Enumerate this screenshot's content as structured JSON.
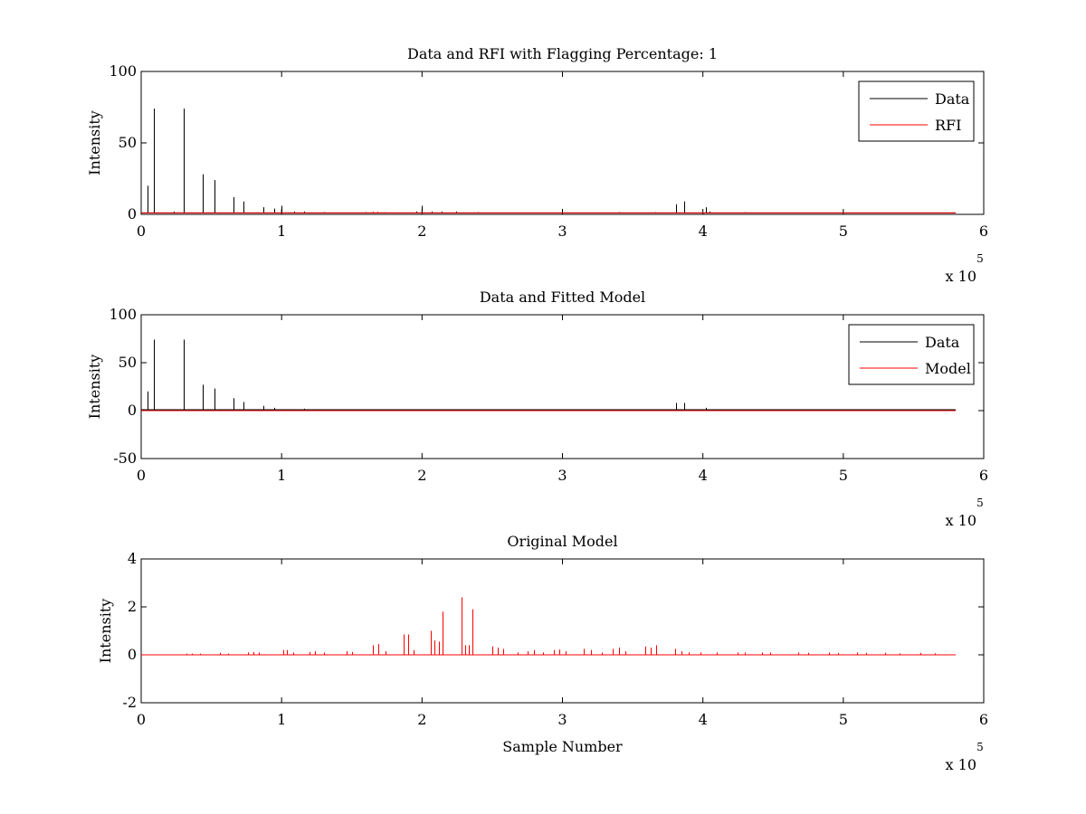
{
  "figure": {
    "background": "#ffffff",
    "colors": {
      "data": "#000000",
      "rfi": "#ff0000",
      "model": "#ff0000"
    }
  },
  "chart_data": [
    {
      "type": "line",
      "title": "Data and RFI with Flagging Percentage: 1",
      "xlabel": "",
      "ylabel": "Intensity",
      "xlim": [
        0,
        600000
      ],
      "ylim": [
        0,
        100
      ],
      "xticks": [
        "0",
        "1",
        "2",
        "3",
        "4",
        "5",
        "6"
      ],
      "yticks": [
        "0",
        "50",
        "100"
      ],
      "x_exponent": {
        "base": "x 10",
        "power": "5"
      },
      "legend": {
        "placement": "top-right",
        "entries": [
          "Data",
          "RFI"
        ]
      },
      "series": [
        {
          "name": "Data",
          "color": "#000000",
          "baseline": 1,
          "x_end": 580000,
          "spikes": [
            {
              "x": 4500,
              "y": 20
            },
            {
              "x": 9000,
              "y": 74
            },
            {
              "x": 23000,
              "y": 2
            },
            {
              "x": 30000,
              "y": 74
            },
            {
              "x": 44000,
              "y": 28
            },
            {
              "x": 52000,
              "y": 24
            },
            {
              "x": 66000,
              "y": 12
            },
            {
              "x": 73000,
              "y": 9
            },
            {
              "x": 87000,
              "y": 5
            },
            {
              "x": 95000,
              "y": 4
            },
            {
              "x": 100000,
              "y": 6
            },
            {
              "x": 109000,
              "y": 2
            },
            {
              "x": 116000,
              "y": 2
            },
            {
              "x": 130000,
              "y": 1.5
            },
            {
              "x": 160000,
              "y": 1.5
            },
            {
              "x": 196000,
              "y": 2
            },
            {
              "x": 200000,
              "y": 6
            },
            {
              "x": 207000,
              "y": 2
            },
            {
              "x": 214000,
              "y": 2
            },
            {
              "x": 224000,
              "y": 2
            },
            {
              "x": 240000,
              "y": 1.5
            },
            {
              "x": 340000,
              "y": 1.5
            },
            {
              "x": 366000,
              "y": 1.5
            },
            {
              "x": 381000,
              "y": 7
            },
            {
              "x": 387000,
              "y": 9
            },
            {
              "x": 402000,
              "y": 5
            },
            {
              "x": 405000,
              "y": 2
            },
            {
              "x": 430000,
              "y": 1.5
            }
          ]
        },
        {
          "name": "RFI",
          "color": "#ff0000",
          "baseline": 1,
          "x_end": 580000,
          "spikes": [
            {
              "x": 165000,
              "y": 1.8
            },
            {
              "x": 168000,
              "y": 1.8
            },
            {
              "x": 173000,
              "y": 1.5
            }
          ]
        }
      ]
    },
    {
      "type": "line",
      "title": "Data and Fitted Model",
      "xlabel": "",
      "ylabel": "Intensity",
      "xlim": [
        0,
        600000
      ],
      "ylim": [
        -50,
        100
      ],
      "xticks": [
        "0",
        "1",
        "2",
        "3",
        "4",
        "5",
        "6"
      ],
      "yticks": [
        "-50",
        "0",
        "50",
        "100"
      ],
      "x_exponent": {
        "base": "x 10",
        "power": "5"
      },
      "legend": {
        "placement": "top-right",
        "entries": [
          "Data",
          "Model"
        ]
      },
      "series": [
        {
          "name": "Data",
          "color": "#000000",
          "baseline": 1,
          "x_end": 580000,
          "spikes": [
            {
              "x": 4500,
              "y": 20
            },
            {
              "x": 9000,
              "y": 74
            },
            {
              "x": 30000,
              "y": 74
            },
            {
              "x": 44000,
              "y": 27
            },
            {
              "x": 52000,
              "y": 23
            },
            {
              "x": 66000,
              "y": 13
            },
            {
              "x": 73000,
              "y": 9
            },
            {
              "x": 87000,
              "y": 5
            },
            {
              "x": 95000,
              "y": 3
            },
            {
              "x": 116000,
              "y": 2
            },
            {
              "x": 381000,
              "y": 8
            },
            {
              "x": 387000,
              "y": 8
            },
            {
              "x": 402000,
              "y": 3
            }
          ]
        },
        {
          "name": "Model",
          "color": "#ff0000",
          "baseline": 0,
          "x_end": 580000,
          "spikes": []
        }
      ]
    },
    {
      "type": "line",
      "title": "Original Model",
      "xlabel": "Sample Number",
      "ylabel": "Intensity",
      "xlim": [
        0,
        600000
      ],
      "ylim": [
        -2,
        4
      ],
      "xticks": [
        "0",
        "1",
        "2",
        "3",
        "4",
        "5",
        "6"
      ],
      "yticks": [
        "-2",
        "0",
        "2",
        "4"
      ],
      "x_exponent": {
        "base": "x 10",
        "power": "5"
      },
      "series": [
        {
          "name": "",
          "color": "#ff0000",
          "baseline": 0,
          "x_end": 580000,
          "spikes": [
            {
              "x": 32000,
              "y": 0.05
            },
            {
              "x": 36000,
              "y": 0.05
            },
            {
              "x": 42000,
              "y": 0.05
            },
            {
              "x": 56000,
              "y": 0.08
            },
            {
              "x": 62000,
              "y": 0.05
            },
            {
              "x": 76000,
              "y": 0.1
            },
            {
              "x": 80000,
              "y": 0.12
            },
            {
              "x": 84000,
              "y": 0.1
            },
            {
              "x": 101000,
              "y": 0.2
            },
            {
              "x": 104000,
              "y": 0.2
            },
            {
              "x": 108000,
              "y": 0.1
            },
            {
              "x": 120000,
              "y": 0.12
            },
            {
              "x": 124000,
              "y": 0.15
            },
            {
              "x": 130000,
              "y": 0.1
            },
            {
              "x": 146000,
              "y": 0.15
            },
            {
              "x": 150000,
              "y": 0.12
            },
            {
              "x": 165000,
              "y": 0.4
            },
            {
              "x": 169000,
              "y": 0.45
            },
            {
              "x": 174000,
              "y": 0.15
            },
            {
              "x": 187000,
              "y": 0.85
            },
            {
              "x": 190000,
              "y": 0.85
            },
            {
              "x": 194000,
              "y": 0.2
            },
            {
              "x": 206000,
              "y": 1.0
            },
            {
              "x": 209000,
              "y": 0.6
            },
            {
              "x": 212000,
              "y": 0.55
            },
            {
              "x": 214500,
              "y": 1.8
            },
            {
              "x": 228000,
              "y": 2.4
            },
            {
              "x": 231000,
              "y": 0.4
            },
            {
              "x": 233000,
              "y": 0.4
            },
            {
              "x": 236000,
              "y": 1.9
            },
            {
              "x": 250000,
              "y": 0.35
            },
            {
              "x": 254000,
              "y": 0.3
            },
            {
              "x": 258000,
              "y": 0.25
            },
            {
              "x": 268000,
              "y": 0.1
            },
            {
              "x": 275000,
              "y": 0.15
            },
            {
              "x": 280000,
              "y": 0.2
            },
            {
              "x": 286000,
              "y": 0.1
            },
            {
              "x": 294000,
              "y": 0.2
            },
            {
              "x": 298000,
              "y": 0.22
            },
            {
              "x": 302000,
              "y": 0.15
            },
            {
              "x": 315000,
              "y": 0.25
            },
            {
              "x": 320000,
              "y": 0.2
            },
            {
              "x": 328000,
              "y": 0.1
            },
            {
              "x": 336000,
              "y": 0.25
            },
            {
              "x": 340000,
              "y": 0.3
            },
            {
              "x": 345000,
              "y": 0.15
            },
            {
              "x": 359000,
              "y": 0.35
            },
            {
              "x": 363000,
              "y": 0.3
            },
            {
              "x": 367000,
              "y": 0.4
            },
            {
              "x": 380000,
              "y": 0.25
            },
            {
              "x": 385000,
              "y": 0.15
            },
            {
              "x": 390000,
              "y": 0.1
            },
            {
              "x": 398000,
              "y": 0.1
            },
            {
              "x": 410000,
              "y": 0.1
            },
            {
              "x": 425000,
              "y": 0.1
            },
            {
              "x": 430000,
              "y": 0.1
            },
            {
              "x": 442000,
              "y": 0.1
            },
            {
              "x": 448000,
              "y": 0.1
            },
            {
              "x": 468000,
              "y": 0.1
            },
            {
              "x": 475000,
              "y": 0.08
            },
            {
              "x": 490000,
              "y": 0.1
            },
            {
              "x": 496000,
              "y": 0.08
            },
            {
              "x": 510000,
              "y": 0.1
            },
            {
              "x": 516000,
              "y": 0.08
            },
            {
              "x": 530000,
              "y": 0.08
            },
            {
              "x": 540000,
              "y": 0.06
            },
            {
              "x": 555000,
              "y": 0.08
            },
            {
              "x": 565000,
              "y": 0.06
            }
          ]
        }
      ]
    }
  ]
}
